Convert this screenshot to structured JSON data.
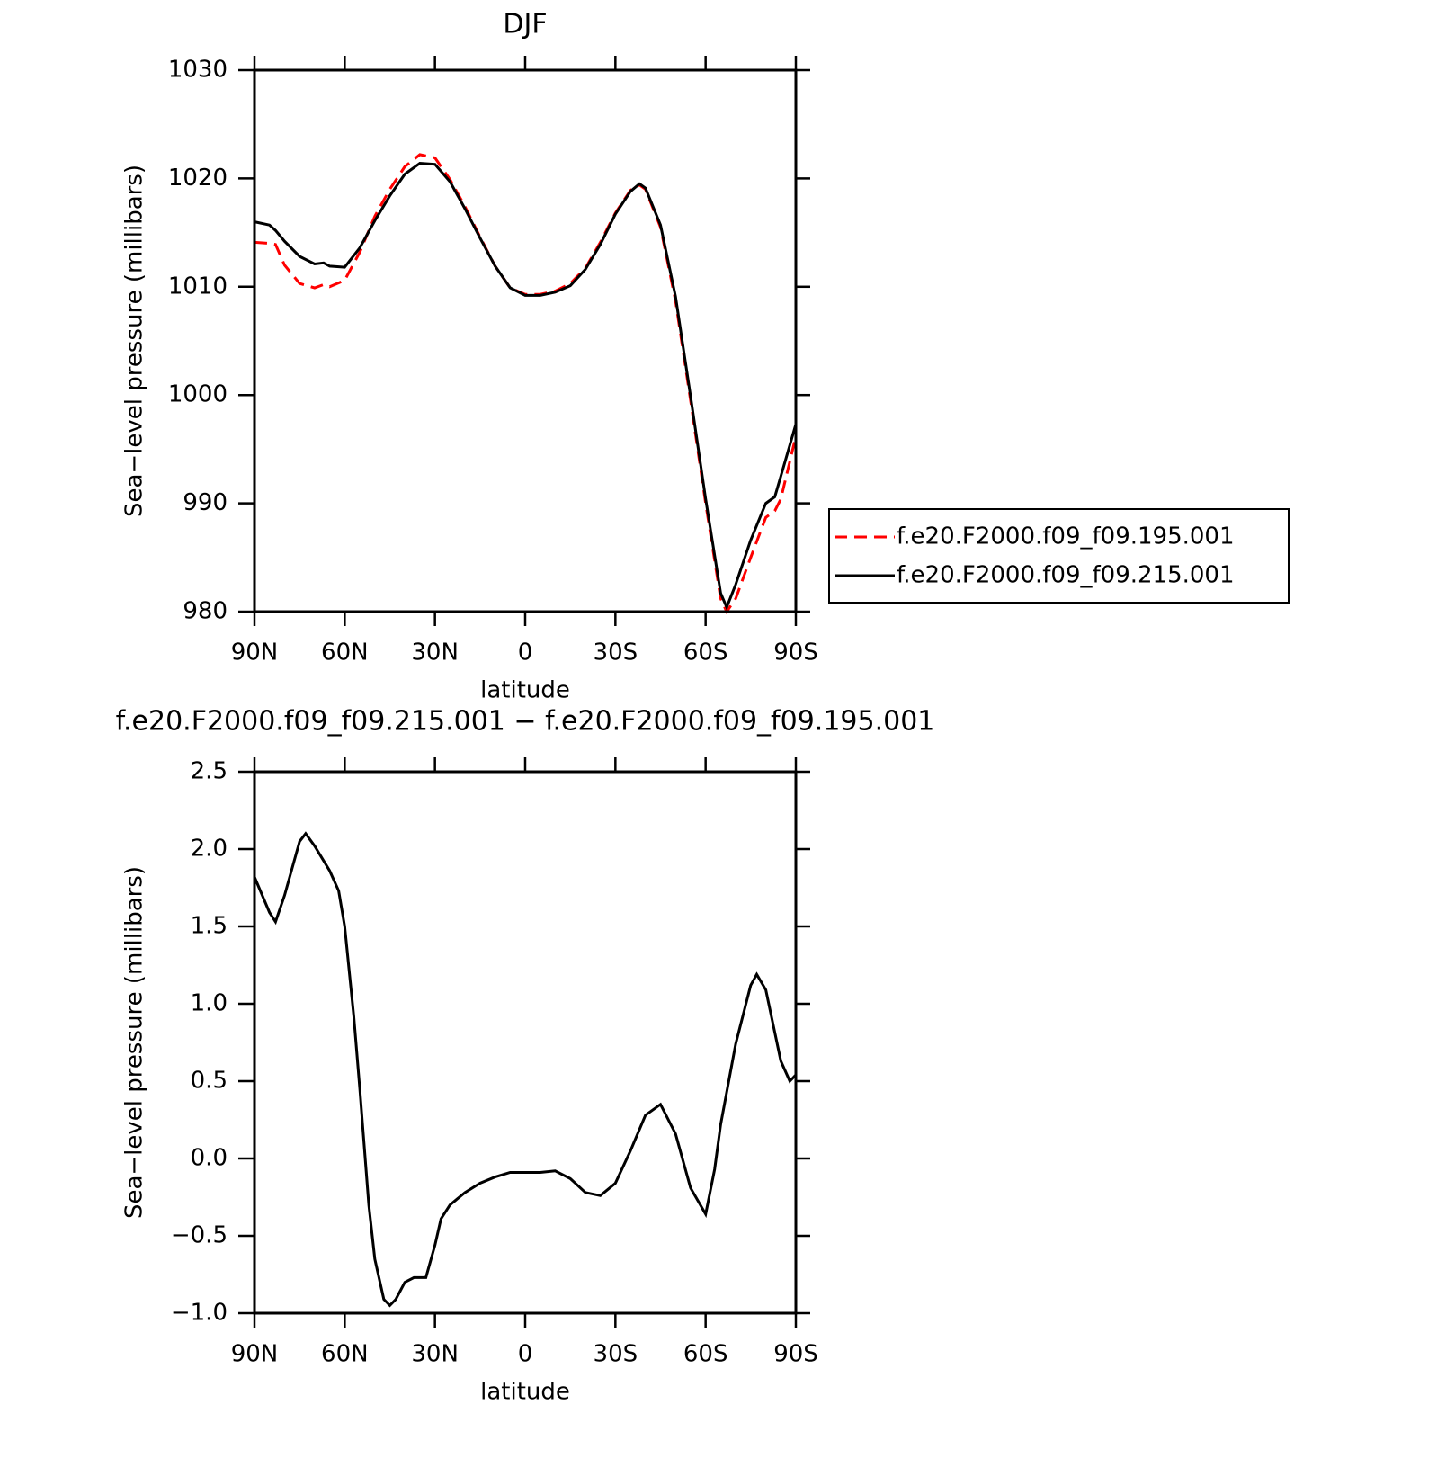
{
  "chart_data": [
    {
      "type": "line",
      "title": "DJF",
      "x_label": "latitude",
      "y_label": "Sea−level pressure (millibars)",
      "x": [
        90,
        85,
        83,
        80,
        75,
        70,
        67,
        65,
        60,
        55,
        50,
        45,
        40,
        35,
        30,
        25,
        20,
        15,
        10,
        5,
        0,
        -5,
        -10,
        -15,
        -20,
        -25,
        -30,
        -35,
        -38,
        -40,
        -45,
        -50,
        -55,
        -60,
        -65,
        -67,
        -70,
        -75,
        -80,
        -83,
        -85,
        -90
      ],
      "series": [
        {
          "name": "f.e20.F2000.f09_f09.195.001",
          "color": "#ff0000",
          "linestyle": "dashed",
          "values": [
            1014.1,
            1014.0,
            1013.9,
            1012.0,
            1010.3,
            1009.9,
            1010.2,
            1010.0,
            1010.6,
            1013.2,
            1016.5,
            1019.0,
            1021.1,
            1022.2,
            1021.9,
            1019.9,
            1017.4,
            1014.6,
            1011.9,
            1009.9,
            1009.3,
            1009.3,
            1009.6,
            1010.3,
            1011.7,
            1014.1,
            1016.8,
            1018.9,
            1019.4,
            1019.0,
            1015.5,
            1008.7,
            999.5,
            990.0,
            981.2,
            980.0,
            981.2,
            985.0,
            988.7,
            989.3,
            990.4,
            996.2
          ]
        },
        {
          "name": "f.e20.F2000.f09_f09.215.001",
          "color": "#000000",
          "linestyle": "solid",
          "values": [
            1016.0,
            1015.7,
            1015.2,
            1014.2,
            1012.8,
            1012.1,
            1012.2,
            1011.9,
            1011.8,
            1013.6,
            1016.1,
            1018.4,
            1020.4,
            1021.4,
            1021.3,
            1019.7,
            1017.2,
            1014.5,
            1011.9,
            1009.9,
            1009.2,
            1009.2,
            1009.5,
            1010.1,
            1011.6,
            1013.9,
            1016.7,
            1018.8,
            1019.5,
            1019.1,
            1015.7,
            1009.1,
            999.9,
            990.4,
            981.7,
            980.4,
            982.5,
            986.6,
            990.0,
            990.6,
            992.5,
            997.3
          ]
        }
      ],
      "xlim": [
        90,
        -90
      ],
      "xticks": [
        {
          "value": 90,
          "label": "90N"
        },
        {
          "value": 60,
          "label": "60N"
        },
        {
          "value": 30,
          "label": "30N"
        },
        0,
        {
          "value": -30,
          "label": "30S"
        },
        {
          "value": -60,
          "label": "60S"
        },
        {
          "value": -90,
          "label": "90S"
        }
      ],
      "ylim": [
        980,
        1030
      ],
      "yticks": [
        980,
        990,
        1000,
        1010,
        1020,
        1030
      ],
      "legend": "right"
    },
    {
      "type": "line",
      "title": "f.e20.F2000.f09_f09.215.001 − f.e20.F2000.f09_f09.195.001",
      "x_label": "latitude",
      "y_label": "Sea−level pressure (millibars)",
      "x": [
        90,
        85,
        83,
        80,
        75,
        73,
        70,
        65,
        62,
        60,
        57,
        55,
        52,
        50,
        47,
        45,
        43,
        40,
        37,
        35,
        33,
        30,
        28,
        25,
        20,
        15,
        10,
        5,
        0,
        -5,
        -10,
        -15,
        -20,
        -25,
        -30,
        -35,
        -40,
        -45,
        -50,
        -55,
        -60,
        -63,
        -65,
        -70,
        -75,
        -77,
        -80,
        -85,
        -88,
        -90
      ],
      "series": [
        {
          "color": "#000000",
          "linestyle": "solid",
          "values": [
            1.82,
            1.59,
            1.53,
            1.7,
            2.05,
            2.1,
            2.02,
            1.86,
            1.73,
            1.5,
            0.92,
            0.45,
            -0.3,
            -0.65,
            -0.91,
            -0.95,
            -0.91,
            -0.8,
            -0.77,
            -0.77,
            -0.77,
            -0.56,
            -0.39,
            -0.3,
            -0.22,
            -0.16,
            -0.12,
            -0.09,
            -0.09,
            -0.09,
            -0.08,
            -0.13,
            -0.22,
            -0.24,
            -0.16,
            0.05,
            0.28,
            0.35,
            0.16,
            -0.19,
            -0.36,
            -0.07,
            0.22,
            0.74,
            1.12,
            1.19,
            1.09,
            0.63,
            0.5,
            0.54
          ]
        }
      ],
      "xlim": [
        90,
        -90
      ],
      "xticks": [
        {
          "value": 90,
          "label": "90N"
        },
        {
          "value": 60,
          "label": "60N"
        },
        {
          "value": 30,
          "label": "30N"
        },
        0,
        {
          "value": -30,
          "label": "30S"
        },
        {
          "value": -60,
          "label": "60S"
        },
        {
          "value": -90,
          "label": "90S"
        }
      ],
      "ylim": [
        -1.0,
        2.5
      ],
      "yticks": [
        {
          "value": -1.0,
          "label": "−1.0"
        },
        {
          "value": -0.5,
          "label": "−0.5"
        },
        {
          "value": 0.0,
          "label": "0.0"
        },
        0.5,
        {
          "value": 1.0,
          "label": "1.0"
        },
        1.5,
        {
          "value": 2.0,
          "label": "2.0"
        },
        2.5
      ]
    }
  ]
}
